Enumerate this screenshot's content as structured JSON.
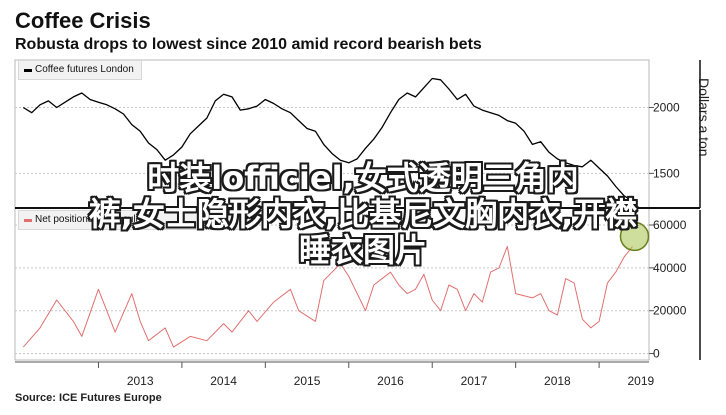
{
  "header": {
    "title": "Coffee Crisis",
    "subtitle": "Robusta drops to lowest since 2010 amid record bearish bets"
  },
  "overlay_text": {
    "line1": "时装lofficiel,女式透明三角内",
    "line2": "裤,女士隐形内衣,比基尼文胸内衣,开襟",
    "line3": "睡衣图片"
  },
  "source": "Source: ICE Futures Europe",
  "colors": {
    "price_line": "#000000",
    "positions_line": "#e07070",
    "highlight": "#a6c24a"
  },
  "chart_data": [
    {
      "type": "line",
      "legend": "Coffee futures London",
      "ylabel": "Dollars a ton",
      "yticks": [
        1500,
        2000
      ],
      "ylim": [
        1260,
        2360
      ],
      "x": [
        2012.1,
        2012.2,
        2012.3,
        2012.4,
        2012.5,
        2012.6,
        2012.7,
        2012.8,
        2012.9,
        2013.0,
        2013.1,
        2013.2,
        2013.3,
        2013.4,
        2013.5,
        2013.6,
        2013.7,
        2013.8,
        2013.9,
        2014.0,
        2014.1,
        2014.2,
        2014.3,
        2014.4,
        2014.5,
        2014.6,
        2014.7,
        2014.8,
        2014.9,
        2015.0,
        2015.1,
        2015.2,
        2015.3,
        2015.4,
        2015.5,
        2015.6,
        2015.7,
        2015.8,
        2015.9,
        2016.0,
        2016.1,
        2016.2,
        2016.3,
        2016.4,
        2016.5,
        2016.6,
        2016.7,
        2016.8,
        2016.9,
        2017.0,
        2017.1,
        2017.2,
        2017.3,
        2017.4,
        2017.5,
        2017.6,
        2017.7,
        2017.8,
        2017.9,
        2018.0,
        2018.1,
        2018.2,
        2018.3,
        2018.4,
        2018.5,
        2018.6,
        2018.7,
        2018.8,
        2018.9,
        2019.0,
        2019.1,
        2019.2,
        2019.3,
        2019.4
      ],
      "values": [
        2000,
        1960,
        2020,
        2050,
        2000,
        2040,
        2080,
        2110,
        2060,
        2040,
        2020,
        1990,
        1950,
        1870,
        1820,
        1730,
        1680,
        1600,
        1640,
        1700,
        1800,
        1860,
        1920,
        2050,
        2100,
        2080,
        1980,
        1990,
        2010,
        2060,
        2030,
        1990,
        1960,
        1900,
        1840,
        1820,
        1720,
        1650,
        1600,
        1580,
        1610,
        1690,
        1760,
        1850,
        1960,
        2060,
        2110,
        2080,
        2150,
        2220,
        2210,
        2140,
        2060,
        2100,
        2010,
        1980,
        1960,
        1940,
        1900,
        1880,
        1820,
        1720,
        1740,
        1660,
        1610,
        1580,
        1560,
        1550,
        1600,
        1540,
        1480,
        1400,
        1330,
        1290
      ]
    },
    {
      "type": "line",
      "legend": "Net positions of speculators",
      "yticks": [
        0,
        20000,
        40000,
        60000
      ],
      "ylim": [
        -3000,
        67000
      ],
      "x": [
        2012.1,
        2012.3,
        2012.5,
        2012.7,
        2012.8,
        2013.0,
        2013.1,
        2013.2,
        2013.4,
        2013.5,
        2013.6,
        2013.8,
        2013.9,
        2014.1,
        2014.3,
        2014.5,
        2014.6,
        2014.8,
        2014.9,
        2015.1,
        2015.3,
        2015.4,
        2015.6,
        2015.7,
        2015.9,
        2016.0,
        2016.2,
        2016.3,
        2016.5,
        2016.6,
        2016.7,
        2016.8,
        2016.9,
        2017.0,
        2017.1,
        2017.2,
        2017.3,
        2017.4,
        2017.5,
        2017.6,
        2017.7,
        2017.8,
        2017.9,
        2018.0,
        2018.2,
        2018.3,
        2018.4,
        2018.5,
        2018.6,
        2018.7,
        2018.8,
        2018.9,
        2019.0,
        2019.1,
        2019.2,
        2019.3,
        2019.4
      ],
      "values": [
        3000,
        12000,
        25000,
        15000,
        8000,
        30000,
        20000,
        10000,
        28000,
        15000,
        6000,
        12000,
        3000,
        8000,
        6000,
        14000,
        10000,
        20000,
        15000,
        24000,
        30000,
        20000,
        15000,
        34000,
        42000,
        36000,
        20000,
        32000,
        38000,
        32000,
        28000,
        30000,
        37000,
        25000,
        20000,
        32000,
        30000,
        20000,
        28000,
        24000,
        38000,
        40000,
        50000,
        28000,
        26000,
        28000,
        20000,
        18000,
        35000,
        33000,
        16000,
        12000,
        15000,
        33000,
        38000,
        45000,
        50000
      ]
    }
  ],
  "x_ticks": [
    "2013",
    "2014",
    "2015",
    "2016",
    "2017",
    "2018",
    "2019"
  ],
  "x_range": [
    2012.0,
    2019.55
  ]
}
